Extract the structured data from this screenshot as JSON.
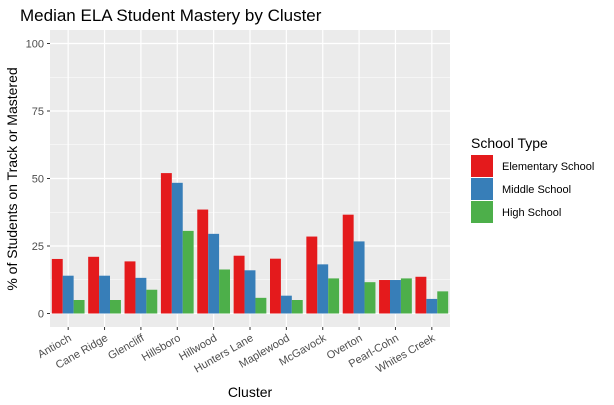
{
  "chart_data": {
    "type": "bar",
    "title": "Median ELA Student Mastery by Cluster",
    "xlabel": "Cluster",
    "ylabel": "% of Students on Track or Mastered",
    "ylim": [
      0,
      100
    ],
    "yticks": [
      0,
      25,
      50,
      75,
      100
    ],
    "grid": true,
    "legend_position": "right",
    "legend_title": "School Type",
    "categories": [
      "Antioch",
      "Cane Ridge",
      "Glencliff",
      "Hillsboro",
      "Hillwood",
      "Hunters Lane",
      "Maplewood",
      "McGavock",
      "Overton",
      "Pearl-Cohn",
      "Whites Creek"
    ],
    "series": [
      {
        "name": "Elementary School",
        "color": "#E41A1C",
        "values": [
          20.2,
          21.0,
          19.3,
          52.0,
          38.5,
          21.4,
          20.3,
          28.5,
          36.6,
          12.4,
          13.6
        ]
      },
      {
        "name": "Middle School",
        "color": "#377EB8",
        "values": [
          14.0,
          14.0,
          13.2,
          48.4,
          29.5,
          16.0,
          6.6,
          18.2,
          26.7,
          12.4,
          5.4
        ]
      },
      {
        "name": "High School",
        "color": "#4DAF4A",
        "values": [
          5.0,
          5.0,
          8.8,
          30.6,
          16.3,
          5.8,
          5.0,
          13.0,
          11.6,
          13.0,
          8.2
        ]
      }
    ]
  }
}
